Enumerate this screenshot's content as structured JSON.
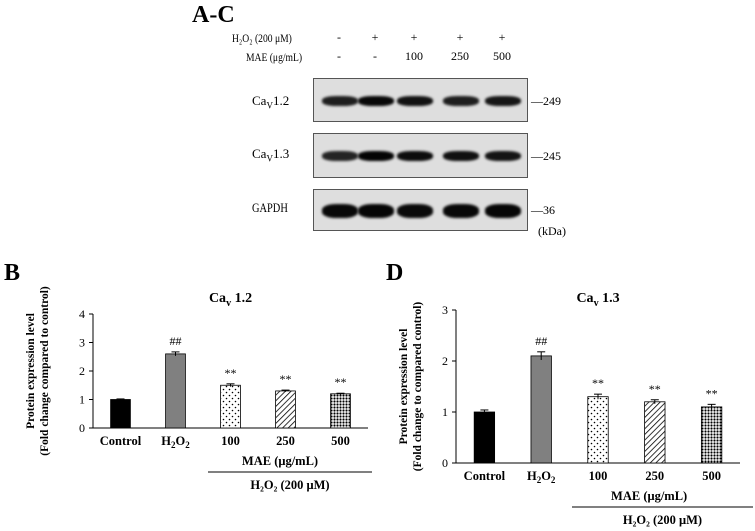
{
  "figure_label": "A-C",
  "treatment_rows": [
    {
      "label": "H₂O₂ (200 μM)",
      "values": [
        "-",
        "+",
        "+",
        "+",
        "+"
      ]
    },
    {
      "label": "MAE (μg/mL)",
      "values": [
        "-",
        "-",
        "100",
        "250",
        "500"
      ]
    }
  ],
  "blots": [
    {
      "label": "Caᵥ 1.2",
      "mw": "249",
      "intensity": [
        0.62,
        0.9,
        0.78,
        0.62,
        0.72
      ]
    },
    {
      "label": "Caᵥ 1.3",
      "mw": "245",
      "intensity": [
        0.55,
        0.95,
        0.85,
        0.8,
        0.75
      ]
    },
    {
      "label": "GAPDH",
      "mw": "36",
      "intensity": [
        0.9,
        0.92,
        0.88,
        0.9,
        0.92
      ]
    }
  ],
  "kda_label": "(kDa)",
  "panels": [
    {
      "letter": "B",
      "treatment_caption": "H₂O₂ (200 μM)"
    },
    {
      "letter": "D",
      "treatment_caption": "H₂O₂ (200 μM)"
    }
  ],
  "chart_data": [
    {
      "type": "bar",
      "title": "Caᵥ 1.2",
      "ylabel": "Protein expression level\n(Fold change compared to control)",
      "xlabel": "MAE (μg/mL)",
      "categories": [
        "Control",
        "H₂O₂",
        "100",
        "250",
        "500"
      ],
      "values": [
        1.0,
        2.6,
        1.5,
        1.3,
        1.2
      ],
      "errors": [
        0.02,
        0.07,
        0.05,
        0.03,
        0.02
      ],
      "annotations": [
        "",
        "##",
        "**",
        "**",
        "**"
      ],
      "ylim": [
        0,
        4
      ],
      "yticks": [
        0,
        1,
        2,
        3,
        4
      ],
      "bar_styles": [
        "solid-black",
        "solid-gray",
        "dots",
        "diagonal-lines",
        "dense-dots"
      ]
    },
    {
      "type": "bar",
      "title": "Caᵥ 1.3",
      "ylabel": "Protein expression level\n(Fold change to compared control)",
      "xlabel": "MAE (μg/mL)",
      "categories": [
        "Control",
        "H₂O₂",
        "100",
        "250",
        "500"
      ],
      "values": [
        1.0,
        2.1,
        1.3,
        1.2,
        1.1
      ],
      "errors": [
        0.04,
        0.08,
        0.05,
        0.04,
        0.05
      ],
      "annotations": [
        "",
        "##",
        "**",
        "**",
        "**"
      ],
      "ylim": [
        0,
        3
      ],
      "yticks": [
        0,
        1,
        2,
        3
      ],
      "bar_styles": [
        "solid-black",
        "solid-gray",
        "dots",
        "diagonal-lines",
        "dense-dots"
      ]
    }
  ]
}
